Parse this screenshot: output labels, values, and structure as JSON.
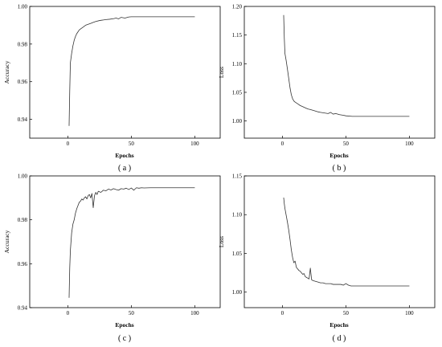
{
  "chart_data": [
    {
      "type": "line",
      "caption": "( a )",
      "xlabel": "Epochs",
      "ylabel": "Accuracy",
      "xlim": [
        -30,
        120
      ],
      "ylim": [
        0.93,
        1.0
      ],
      "xticks": [
        "0",
        "50",
        "100"
      ],
      "yticks": [
        "0.94",
        "0.96",
        "0.98",
        "1.00"
      ],
      "grid": false,
      "series": [
        {
          "x": [
            1,
            1.5,
            2,
            3,
            4,
            5,
            6,
            7,
            8,
            9,
            10,
            12,
            14,
            16,
            18,
            20,
            22,
            25,
            28,
            30,
            33,
            36,
            38,
            40,
            42,
            45,
            48,
            50,
            55,
            60,
            70,
            80,
            90,
            100
          ],
          "y": [
            0.9365,
            0.955,
            0.97,
            0.975,
            0.979,
            0.982,
            0.984,
            0.9855,
            0.9865,
            0.9875,
            0.988,
            0.989,
            0.99,
            0.9905,
            0.991,
            0.9915,
            0.992,
            0.9925,
            0.9928,
            0.993,
            0.9932,
            0.9935,
            0.9938,
            0.9934,
            0.9942,
            0.9938,
            0.9944,
            0.9945,
            0.9945,
            0.9945,
            0.9945,
            0.9945,
            0.9945,
            0.9945
          ]
        }
      ]
    },
    {
      "type": "line",
      "caption": "( b )",
      "xlabel": "Epochs",
      "ylabel": "Loss",
      "xlim": [
        -30,
        120
      ],
      "ylim": [
        0.97,
        1.2
      ],
      "xticks": [
        "0",
        "50",
        "100"
      ],
      "yticks": [
        "1.00",
        "1.05",
        "1.10",
        "1.15",
        "1.20"
      ],
      "grid": false,
      "series": [
        {
          "x": [
            1,
            1.5,
            2,
            3,
            4,
            5,
            6,
            7,
            8,
            9,
            10,
            12,
            14,
            16,
            18,
            20,
            22,
            25,
            28,
            30,
            33,
            36,
            38,
            40,
            42,
            45,
            48,
            50,
            55,
            60,
            70,
            80,
            90,
            100
          ],
          "y": [
            1.185,
            1.145,
            1.118,
            1.105,
            1.09,
            1.074,
            1.058,
            1.046,
            1.039,
            1.035,
            1.033,
            1.03,
            1.027,
            1.025,
            1.023,
            1.021,
            1.02,
            1.018,
            1.016,
            1.015,
            1.014,
            1.013,
            1.015,
            1.012,
            1.013,
            1.011,
            1.01,
            1.009,
            1.008,
            1.008,
            1.008,
            1.008,
            1.008,
            1.008
          ]
        }
      ]
    },
    {
      "type": "line",
      "caption": "( c )",
      "xlabel": "Epochs",
      "ylabel": "Accuracy",
      "xlim": [
        -30,
        120
      ],
      "ylim": [
        0.94,
        1.0
      ],
      "xticks": [
        "0",
        "50",
        "100"
      ],
      "yticks": [
        "0.94",
        "0.96",
        "0.98",
        "1.00"
      ],
      "grid": false,
      "series": [
        {
          "x": [
            1,
            1.5,
            2,
            3,
            4,
            5,
            6,
            7,
            8,
            9,
            10,
            11,
            12,
            13,
            14,
            15,
            16,
            17,
            18,
            19,
            20,
            21,
            22,
            23,
            24,
            26,
            28,
            30,
            32,
            34,
            36,
            38,
            40,
            42,
            44,
            46,
            48,
            50,
            52,
            54,
            56,
            58,
            60,
            65,
            70,
            80,
            90,
            100
          ],
          "y": [
            0.9445,
            0.958,
            0.966,
            0.974,
            0.978,
            0.98,
            0.983,
            0.985,
            0.9865,
            0.988,
            0.9885,
            0.9895,
            0.989,
            0.99,
            0.9905,
            0.9895,
            0.991,
            0.9915,
            0.99,
            0.992,
            0.9855,
            0.991,
            0.9925,
            0.9915,
            0.993,
            0.9925,
            0.9935,
            0.9932,
            0.994,
            0.9936,
            0.9942,
            0.9938,
            0.9935,
            0.9942,
            0.994,
            0.9944,
            0.9938,
            0.9945,
            0.9935,
            0.9946,
            0.9944,
            0.9946,
            0.9945,
            0.9946,
            0.9946,
            0.9946,
            0.9946,
            0.9946
          ]
        }
      ]
    },
    {
      "type": "line",
      "caption": "( d )",
      "xlabel": "Epochs",
      "ylabel": "Loss",
      "xlim": [
        -30,
        120
      ],
      "ylim": [
        0.98,
        1.15
      ],
      "xticks": [
        "0",
        "50",
        "100"
      ],
      "yticks": [
        "1.00",
        "1.05",
        "1.10",
        "1.15"
      ],
      "grid": false,
      "series": [
        {
          "x": [
            1,
            1.5,
            2,
            3,
            4,
            5,
            6,
            7,
            8,
            9,
            10,
            11,
            12,
            13,
            14,
            15,
            16,
            17,
            18,
            19,
            20,
            21,
            22,
            23,
            24,
            26,
            28,
            30,
            32,
            34,
            36,
            38,
            40,
            42,
            44,
            46,
            48,
            50,
            52,
            54,
            56,
            58,
            60,
            65,
            70,
            80,
            90,
            100
          ],
          "y": [
            1.122,
            1.114,
            1.108,
            1.099,
            1.09,
            1.08,
            1.068,
            1.055,
            1.045,
            1.038,
            1.04,
            1.032,
            1.03,
            1.028,
            1.027,
            1.025,
            1.023,
            1.024,
            1.02,
            1.019,
            1.018,
            1.017,
            1.031,
            1.016,
            1.015,
            1.014,
            1.013,
            1.012,
            1.012,
            1.011,
            1.011,
            1.011,
            1.01,
            1.01,
            1.01,
            1.01,
            1.009,
            1.011,
            1.009,
            1.008,
            1.008,
            1.008,
            1.008,
            1.008,
            1.008,
            1.008,
            1.008,
            1.008
          ]
        }
      ]
    }
  ]
}
